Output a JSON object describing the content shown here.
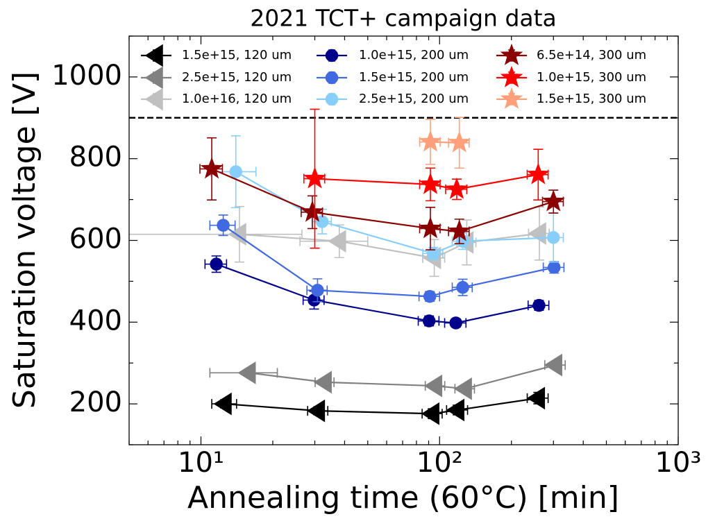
{
  "chart_data": {
    "type": "errorbar",
    "title": "2021 TCT+ campaign data",
    "x_label": "Annealing time (60°C) [min]",
    "y_label": "Saturation voltage [V]",
    "x_scale": "log",
    "xlim": [
      5,
      1000
    ],
    "ylim": [
      100,
      1100
    ],
    "xticks": [
      {
        "value": 10,
        "label": "10¹"
      },
      {
        "value": 100,
        "label": "10²"
      },
      {
        "value": 1000,
        "label": "10³"
      }
    ],
    "yticks": [
      200,
      400,
      600,
      800,
      1000
    ],
    "reference_line": 900,
    "legend_position": "upper center",
    "series": [
      {
        "name": "1.5e+15, 120 um",
        "color": "#000000",
        "marker": "triangle-left",
        "x": [
          12.6,
          31.0,
          93.5,
          119,
          259
        ],
        "values": [
          200,
          183,
          176,
          185,
          214
        ],
        "xerr": [
          1.5,
          3,
          9,
          12,
          26
        ],
        "yerr": [
          10,
          10,
          12,
          12,
          14
        ]
      },
      {
        "name": "2.5e+15, 120 um",
        "color": "#808080",
        "marker": "triangle-left",
        "x": [
          15.9,
          33.1,
          96.1,
          128,
          306
        ],
        "values": [
          276,
          253,
          244,
          237,
          295
        ],
        "xerr": [
          5,
          3,
          9,
          12,
          30
        ],
        "yerr": [
          8,
          8,
          8,
          8,
          8
        ]
      },
      {
        "name": "1.0e+16, 120 um",
        "color": "#c0c0c0",
        "marker": "triangle-left",
        "x": [
          14.5,
          38,
          95,
          130,
          262
        ],
        "values": [
          615,
          598,
          557,
          595,
          617
        ],
        "xerr": [
          12,
          12,
          10,
          12,
          26
        ],
        "yerr": [
          68,
          40,
          45,
          55,
          65
        ]
      },
      {
        "name": "1.0e+15, 200 um",
        "color": "#00008b",
        "marker": "circle",
        "x": [
          11.6,
          29.8,
          90.4,
          117,
          261
        ],
        "values": [
          542,
          454,
          403,
          398,
          441
        ],
        "xerr": [
          1.2,
          3,
          9,
          12,
          26
        ],
        "yerr": [
          20,
          22,
          12,
          10,
          12
        ]
      },
      {
        "name": "1.5e+15, 200 um",
        "color": "#4169e1",
        "marker": "circle",
        "x": [
          12.4,
          30.8,
          91,
          125,
          302
        ],
        "values": [
          637,
          478,
          463,
          485,
          534
        ],
        "xerr": [
          1.5,
          3,
          9,
          12,
          30
        ],
        "yerr": [
          25,
          28,
          12,
          20,
          14
        ]
      },
      {
        "name": "2.5e+15, 200 um",
        "color": "#87cefa",
        "marker": "circle",
        "x": [
          14.0,
          32.2,
          94.1,
          125,
          300
        ],
        "values": [
          768,
          646,
          568,
          598,
          607
        ],
        "xerr": [
          3,
          3,
          9,
          12,
          30
        ],
        "yerr": [
          88,
          30,
          15,
          20,
          60
        ]
      },
      {
        "name": "6.5e+14, 300 um",
        "color": "#8b0000",
        "marker": "star",
        "x": [
          11.1,
          29.3,
          91.5,
          121,
          300
        ],
        "values": [
          775,
          669,
          629,
          622,
          695
        ],
        "xerr": [
          1.2,
          3,
          9,
          12,
          30
        ],
        "yerr": [
          76,
          40,
          52,
          30,
          28
        ]
      },
      {
        "name": "1.0e+15, 300 um",
        "color": "#ff0000",
        "marker": "star",
        "x": [
          30,
          91.5,
          118,
          259
        ],
        "values": [
          751,
          737,
          725,
          761
        ],
        "xerr": [
          3,
          9,
          12,
          26
        ],
        "yerr": [
          170,
          40,
          25,
          62
        ]
      },
      {
        "name": "1.5e+15, 300 um",
        "color": "#ffa07a",
        "marker": "star",
        "x": [
          91.5,
          121
        ],
        "values": [
          841,
          839
        ],
        "xerr": [
          9,
          12
        ],
        "yerr": [
          55,
          62
        ]
      }
    ]
  }
}
